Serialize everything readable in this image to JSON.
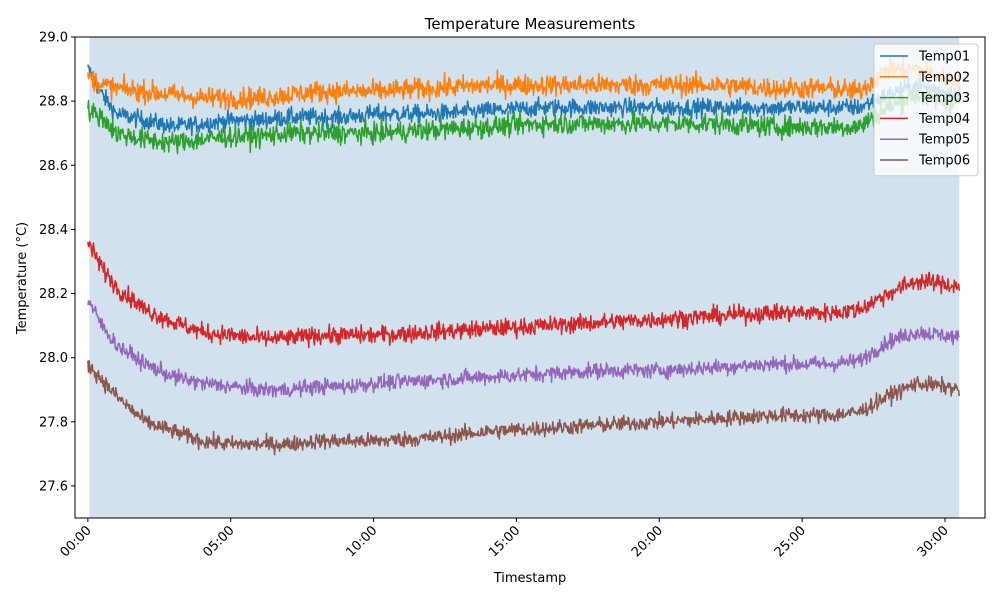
{
  "chart_data": {
    "type": "line",
    "title": "Temperature Measurements",
    "xlabel": "Timestamp",
    "ylabel": "Temperature (°C)",
    "x_unit": "hours",
    "xlim": [
      -0.45,
      31.4
    ],
    "ylim": [
      27.5,
      29.0
    ],
    "x_ticks": [
      {
        "value": 0,
        "label": "00:00"
      },
      {
        "value": 5,
        "label": "05:00"
      },
      {
        "value": 10,
        "label": "10:00"
      },
      {
        "value": 15,
        "label": "15:00"
      },
      {
        "value": 20,
        "label": "20:00"
      },
      {
        "value": 25,
        "label": "25:00"
      },
      {
        "value": 30,
        "label": "30:00"
      }
    ],
    "y_ticks": [
      27.6,
      27.8,
      28.0,
      28.2,
      28.4,
      28.6,
      28.8,
      29.0
    ],
    "y_tick_labels": [
      "27.6",
      "27.8",
      "28.0",
      "28.2",
      "28.4",
      "28.6",
      "28.8",
      "29.0"
    ],
    "shaded_region": {
      "x_start": 0.05,
      "x_end": 30.5,
      "color": "#d1e1ed"
    },
    "grid": false,
    "legend_position": "top-right",
    "series": [
      {
        "name": "Temp01",
        "color": "#1f77b4",
        "x": [
          0,
          0.5,
          1,
          2,
          3,
          4,
          5,
          6,
          7,
          8,
          9,
          10,
          12,
          14,
          16,
          18,
          20,
          22,
          24,
          26,
          27,
          28,
          29,
          30,
          30.5
        ],
        "values": [
          28.9,
          28.82,
          28.76,
          28.74,
          28.72,
          28.73,
          28.74,
          28.74,
          28.75,
          28.75,
          28.75,
          28.76,
          28.76,
          28.77,
          28.78,
          28.78,
          28.78,
          28.78,
          28.78,
          28.78,
          28.78,
          28.82,
          28.85,
          28.83,
          28.82
        ],
        "noise": 0.025
      },
      {
        "name": "Temp02",
        "color": "#ff7f0e",
        "x": [
          0,
          0.5,
          1,
          2,
          3,
          4,
          5,
          6,
          7,
          8,
          9,
          10,
          12,
          14,
          16,
          18,
          20,
          22,
          24,
          26,
          27,
          28,
          29,
          30,
          30.5
        ],
        "values": [
          28.88,
          28.85,
          28.84,
          28.83,
          28.82,
          28.81,
          28.81,
          28.81,
          28.82,
          28.83,
          28.83,
          28.83,
          28.84,
          28.85,
          28.85,
          28.85,
          28.85,
          28.85,
          28.84,
          28.84,
          28.83,
          28.9,
          28.9,
          28.87,
          28.86
        ],
        "noise": 0.03
      },
      {
        "name": "Temp03",
        "color": "#2ca02c",
        "x": [
          0,
          0.5,
          1,
          2,
          3,
          4,
          5,
          6,
          7,
          8,
          9,
          10,
          12,
          14,
          16,
          18,
          20,
          22,
          24,
          26,
          27,
          28,
          29,
          30,
          30.5
        ],
        "values": [
          28.77,
          28.75,
          28.7,
          28.68,
          28.67,
          28.68,
          28.69,
          28.69,
          28.7,
          28.7,
          28.7,
          28.7,
          28.71,
          28.72,
          28.73,
          28.73,
          28.73,
          28.73,
          28.72,
          28.72,
          28.72,
          28.78,
          28.82,
          28.8,
          28.8
        ],
        "noise": 0.03
      },
      {
        "name": "Temp04",
        "color": "#d62728",
        "x": [
          0,
          0.5,
          1,
          2,
          3,
          4,
          5,
          6,
          7,
          8,
          9,
          10,
          12,
          14,
          16,
          18,
          20,
          22,
          24,
          26,
          27,
          28,
          29,
          30,
          30.5
        ],
        "values": [
          28.36,
          28.28,
          28.22,
          28.15,
          28.11,
          28.08,
          28.07,
          28.06,
          28.06,
          28.07,
          28.07,
          28.07,
          28.08,
          28.09,
          28.1,
          28.11,
          28.12,
          28.13,
          28.14,
          28.14,
          28.15,
          28.2,
          28.24,
          28.23,
          28.22
        ],
        "noise": 0.025
      },
      {
        "name": "Temp05",
        "color": "#9467bd",
        "x": [
          0,
          0.5,
          1,
          2,
          3,
          4,
          5,
          6,
          7,
          8,
          9,
          10,
          12,
          14,
          16,
          18,
          20,
          22,
          24,
          26,
          27,
          28,
          29,
          30,
          30.5
        ],
        "values": [
          28.18,
          28.1,
          28.04,
          27.98,
          27.94,
          27.92,
          27.91,
          27.9,
          27.9,
          27.91,
          27.91,
          27.92,
          27.93,
          27.94,
          27.95,
          27.96,
          27.96,
          27.97,
          27.98,
          27.98,
          27.99,
          28.05,
          28.08,
          28.07,
          28.06
        ],
        "noise": 0.022
      },
      {
        "name": "Temp06",
        "color": "#8c564b",
        "x": [
          0,
          0.5,
          1,
          2,
          3,
          4,
          5,
          6,
          7,
          8,
          9,
          10,
          12,
          14,
          16,
          18,
          20,
          22,
          24,
          26,
          27,
          28,
          29,
          30,
          30.5
        ],
        "values": [
          27.98,
          27.93,
          27.88,
          27.8,
          27.77,
          27.74,
          27.73,
          27.73,
          27.73,
          27.74,
          27.74,
          27.74,
          27.75,
          27.77,
          27.78,
          27.79,
          27.8,
          27.81,
          27.82,
          27.82,
          27.83,
          27.88,
          27.92,
          27.91,
          27.9
        ],
        "noise": 0.022
      }
    ]
  }
}
